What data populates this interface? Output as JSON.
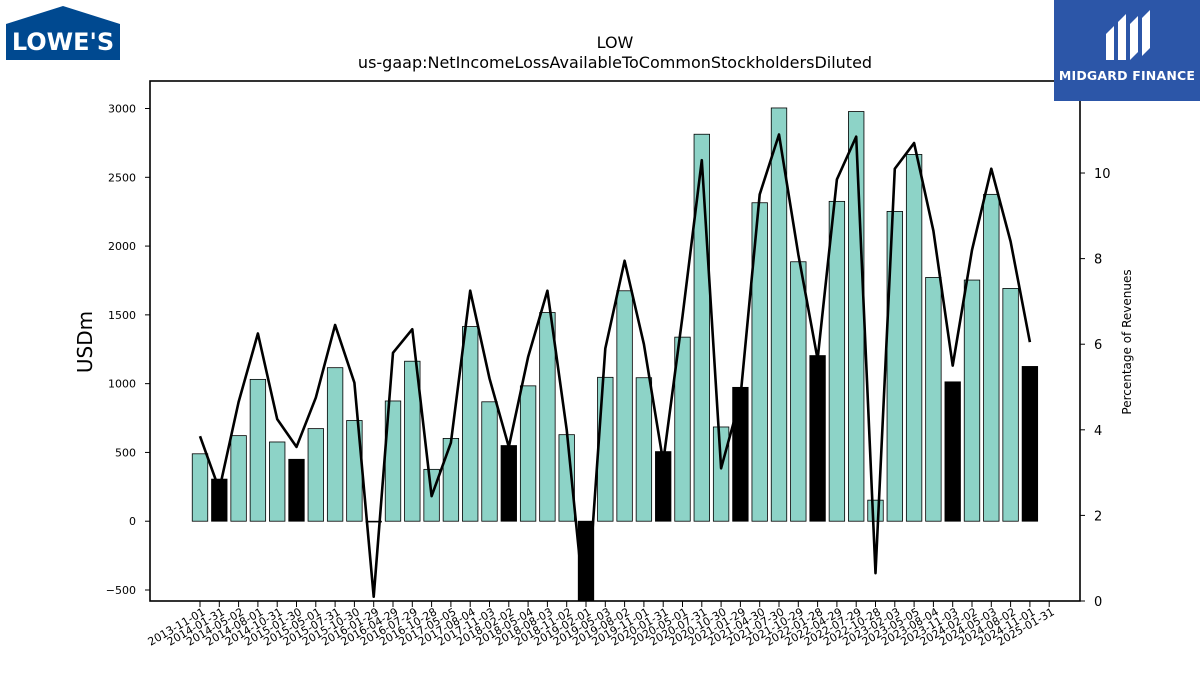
{
  "logos": {
    "left": "LOWE'S",
    "right": "MIDGARD FINANCE"
  },
  "colors": {
    "bar_annual": "#000000",
    "bar_quarter": "#8dd3c7",
    "line": "#000000",
    "midgard_bg": "#2c56a8",
    "lowes_blue": "#004990"
  },
  "chart_data": {
    "type": "bar",
    "title": "LOW",
    "subtitle": "us-gaap:NetIncomeLossAvailableToCommonStockholdersDiluted",
    "ylabel": "USDm",
    "y2label": "Percentage of Revenues",
    "ylim": [
      -580,
      3200
    ],
    "y2lim": [
      0,
      12.15
    ],
    "yticks": [
      -500,
      0,
      500,
      1000,
      1500,
      2000,
      2500,
      3000
    ],
    "y2ticks": [
      0,
      2,
      4,
      6,
      8,
      10
    ],
    "categories": [
      "2013-11-01",
      "2014-01-31",
      "2014-05-02",
      "2014-08-01",
      "2014-10-31",
      "2015-01-30",
      "2015-05-01",
      "2015-07-31",
      "2015-10-30",
      "2016-01-29",
      "2016-04-29",
      "2016-07-29",
      "2016-10-28",
      "2017-05-05",
      "2017-08-04",
      "2017-11-03",
      "2018-02-02",
      "2018-05-04",
      "2018-08-03",
      "2018-11-02",
      "2019-02-01",
      "2019-05-03",
      "2019-08-02",
      "2019-11-01",
      "2020-01-31",
      "2020-05-01",
      "2020-07-31",
      "2020-10-30",
      "2021-01-29",
      "2021-04-30",
      "2021-07-30",
      "2021-10-29",
      "2022-01-28",
      "2022-04-29",
      "2022-07-29",
      "2022-10-28",
      "2023-02-03",
      "2023-05-05",
      "2023-08-04",
      "2023-11-03",
      "2024-02-02",
      "2024-05-03",
      "2024-08-02",
      "2024-11-01",
      "2025-01-31"
    ],
    "bars": [
      {
        "category": "2013-11-01",
        "value": 490,
        "annual": false
      },
      {
        "category": "2014-01-31",
        "value": 306,
        "annual": true
      },
      {
        "category": "2014-05-02",
        "value": 622,
        "annual": false
      },
      {
        "category": "2014-08-01",
        "value": 1031,
        "annual": false
      },
      {
        "category": "2014-10-31",
        "value": 576,
        "annual": false
      },
      {
        "category": "2015-01-30",
        "value": 450,
        "annual": true
      },
      {
        "category": "2015-05-01",
        "value": 673,
        "annual": false
      },
      {
        "category": "2015-07-31",
        "value": 1116,
        "annual": false
      },
      {
        "category": "2015-10-30",
        "value": 732,
        "annual": false
      },
      {
        "category": "2016-01-29",
        "value": 0,
        "annual": true
      },
      {
        "category": "2016-04-29",
        "value": 874,
        "annual": false
      },
      {
        "category": "2016-07-29",
        "value": 1163,
        "annual": false
      },
      {
        "category": "2016-10-28",
        "value": 377,
        "annual": false
      },
      {
        "category": "2017-05-05",
        "value": 602,
        "annual": false
      },
      {
        "category": "2017-08-04",
        "value": 1415,
        "annual": false
      },
      {
        "category": "2017-11-03",
        "value": 868,
        "annual": false
      },
      {
        "category": "2018-02-02",
        "value": 550,
        "annual": true
      },
      {
        "category": "2018-05-04",
        "value": 984,
        "annual": false
      },
      {
        "category": "2018-08-03",
        "value": 1517,
        "annual": false
      },
      {
        "category": "2018-11-02",
        "value": 629,
        "annual": false
      },
      {
        "category": "2019-02-01",
        "value": -580,
        "annual": true
      },
      {
        "category": "2019-05-03",
        "value": 1046,
        "annual": false
      },
      {
        "category": "2019-08-02",
        "value": 1675,
        "annual": false
      },
      {
        "category": "2019-11-01",
        "value": 1043,
        "annual": false
      },
      {
        "category": "2020-01-31",
        "value": 506,
        "annual": true
      },
      {
        "category": "2020-05-01",
        "value": 1338,
        "annual": false
      },
      {
        "category": "2020-07-31",
        "value": 2813,
        "annual": false
      },
      {
        "category": "2020-10-30",
        "value": 685,
        "annual": false
      },
      {
        "category": "2021-01-29",
        "value": 973,
        "annual": true
      },
      {
        "category": "2021-04-30",
        "value": 2315,
        "annual": false
      },
      {
        "category": "2021-07-30",
        "value": 3004,
        "annual": false
      },
      {
        "category": "2021-10-29",
        "value": 1886,
        "annual": false
      },
      {
        "category": "2022-01-28",
        "value": 1204,
        "annual": true
      },
      {
        "category": "2022-04-29",
        "value": 2325,
        "annual": false
      },
      {
        "category": "2022-07-29",
        "value": 2978,
        "annual": false
      },
      {
        "category": "2022-10-28",
        "value": 153,
        "annual": false
      },
      {
        "category": "2023-02-03",
        "value": 2252,
        "annual": false
      },
      {
        "category": "2023-05-05",
        "value": 2666,
        "annual": false
      },
      {
        "category": "2023-08-04",
        "value": 1772,
        "annual": false
      },
      {
        "category": "2023-11-03",
        "value": 1013,
        "annual": true
      },
      {
        "category": "2024-02-02",
        "value": 1753,
        "annual": false
      },
      {
        "category": "2024-05-03",
        "value": 2376,
        "annual": false
      },
      {
        "category": "2024-08-02",
        "value": 1692,
        "annual": false
      },
      {
        "category": "2024-11-01",
        "value": 1125,
        "annual": true
      },
      {
        "category": "2025-01-31",
        "value": null,
        "annual": false
      }
    ],
    "line_series": {
      "axis": "right",
      "values": [
        3.85,
        2.6,
        4.65,
        6.25,
        4.25,
        3.6,
        4.75,
        6.45,
        5.1,
        0.1,
        5.8,
        6.35,
        2.45,
        3.7,
        7.25,
        5.2,
        3.6,
        5.7,
        7.25,
        4.0,
        -0.5,
        5.9,
        7.95,
        6.0,
        3.25,
        6.65,
        10.3,
        3.1,
        4.75,
        9.5,
        10.9,
        8.1,
        5.65,
        9.85,
        10.85,
        0.65,
        10.1,
        10.7,
        8.65,
        5.5,
        8.2,
        10.1,
        8.4,
        6.05
      ]
    },
    "grid": false,
    "legend": "none"
  }
}
